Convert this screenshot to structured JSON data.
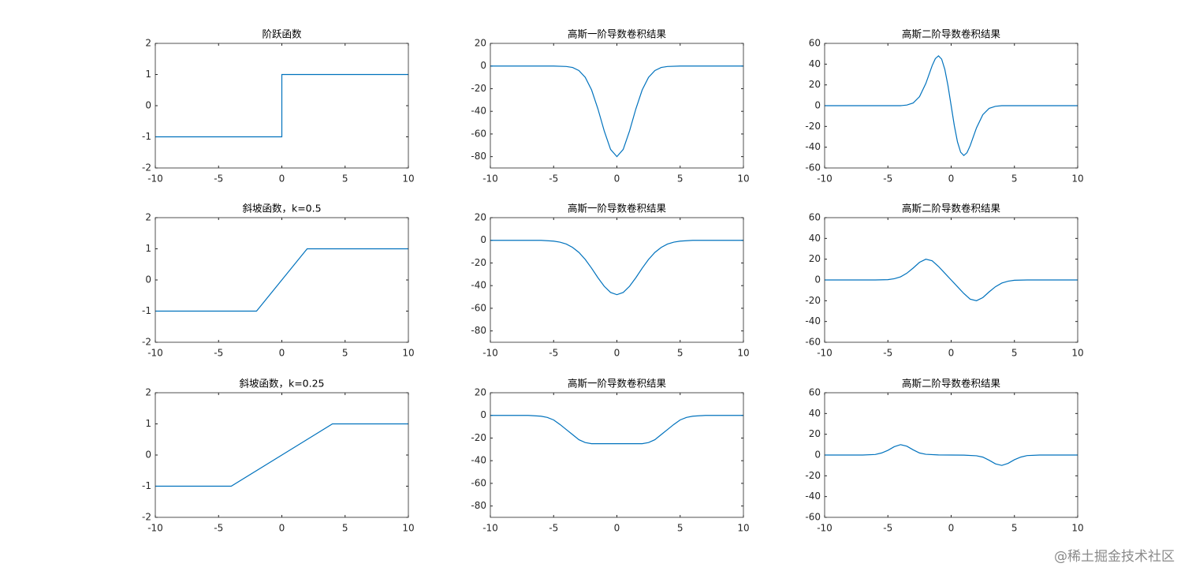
{
  "chart_data": [
    {
      "type": "line",
      "title": "阶跃函数",
      "x": [
        -10,
        0,
        0,
        10
      ],
      "values": [
        -1,
        -1,
        1,
        1
      ],
      "color": "#0072bd",
      "xlim": [
        -10,
        10
      ],
      "xticks": [
        -10,
        -5,
        0,
        5,
        10
      ],
      "ylim": [
        -2,
        2
      ],
      "yticks": [
        -2,
        -1,
        0,
        1,
        2
      ]
    },
    {
      "type": "line",
      "title": "高斯一阶导数卷积结果",
      "x": [
        -10,
        -5,
        -4,
        -3.5,
        -3,
        -2.5,
        -2,
        -1.5,
        -1,
        -0.5,
        0,
        0.5,
        1,
        1.5,
        2,
        2.5,
        3,
        3.5,
        4,
        5,
        10
      ],
      "values": [
        0,
        0,
        -0.4,
        -1.3,
        -4,
        -10,
        -21.1,
        -37.8,
        -57.3,
        -73.6,
        -80,
        -73.6,
        -57.3,
        -37.8,
        -21.1,
        -10,
        -4,
        -1.3,
        -0.4,
        0,
        0
      ],
      "color": "#0072bd",
      "xlim": [
        -10,
        10
      ],
      "xticks": [
        -10,
        -5,
        0,
        5,
        10
      ],
      "ylim": [
        -90,
        20
      ],
      "yticks": [
        -80,
        -60,
        -40,
        -20,
        0,
        20
      ]
    },
    {
      "type": "line",
      "title": "高斯二阶导数卷积结果",
      "x": [
        -10,
        -4,
        -3.5,
        -3,
        -2.5,
        -2,
        -1.5,
        -1.25,
        -1,
        -0.75,
        -0.5,
        -0.25,
        0,
        0.25,
        0.5,
        0.75,
        1,
        1.25,
        1.5,
        2,
        2.5,
        3,
        3.5,
        4,
        10
      ],
      "values": [
        0,
        0,
        0.6,
        2.6,
        8.7,
        21.4,
        38.6,
        45.3,
        48,
        44.8,
        34.9,
        19.2,
        0,
        -19.2,
        -34.9,
        -44.8,
        -48,
        -45.3,
        -38.6,
        -21.4,
        -8.7,
        -2.6,
        -0.6,
        0,
        0
      ],
      "color": "#0072bd",
      "xlim": [
        -10,
        10
      ],
      "xticks": [
        -10,
        -5,
        0,
        5,
        10
      ],
      "ylim": [
        -60,
        60
      ],
      "yticks": [
        -60,
        -40,
        -20,
        0,
        20,
        40,
        60
      ]
    },
    {
      "type": "line",
      "title": "斜坡函数，k=0.5",
      "x": [
        -10,
        -2,
        2,
        10
      ],
      "values": [
        -1,
        -1,
        1,
        1
      ],
      "color": "#0072bd",
      "xlim": [
        -10,
        10
      ],
      "xticks": [
        -10,
        -5,
        0,
        5,
        10
      ],
      "ylim": [
        -2,
        2
      ],
      "yticks": [
        -2,
        -1,
        0,
        1,
        2
      ]
    },
    {
      "type": "line",
      "title": "高斯一阶导数卷积结果",
      "x": [
        -10,
        -6,
        -5,
        -4.5,
        -4,
        -3.5,
        -3,
        -2.5,
        -2,
        -1.5,
        -1,
        -0.5,
        0,
        0.5,
        1,
        1.5,
        2,
        2.5,
        3,
        3.5,
        4,
        4.5,
        5,
        6,
        10
      ],
      "values": [
        0,
        0,
        -0.7,
        -1.6,
        -3.3,
        -6.3,
        -10.7,
        -16.9,
        -24.6,
        -33,
        -40.6,
        -46,
        -48,
        -46,
        -40.6,
        -33,
        -24.6,
        -16.9,
        -10.7,
        -6.3,
        -3.3,
        -1.6,
        -0.7,
        0,
        0
      ],
      "color": "#0072bd",
      "xlim": [
        -10,
        10
      ],
      "xticks": [
        -10,
        -5,
        0,
        5,
        10
      ],
      "ylim": [
        -90,
        20
      ],
      "yticks": [
        -80,
        -60,
        -40,
        -20,
        0,
        20
      ]
    },
    {
      "type": "line",
      "title": "高斯二阶导数卷积结果",
      "x": [
        -10,
        -6,
        -5,
        -4.5,
        -4,
        -3.5,
        -3,
        -2.5,
        -2,
        -1.5,
        -1,
        -0.5,
        0,
        0.5,
        1,
        1.5,
        2,
        2.5,
        3,
        3.5,
        4,
        4.5,
        5,
        6,
        10
      ],
      "values": [
        0,
        0,
        0.3,
        1.2,
        3,
        6.5,
        11.5,
        17,
        20,
        18.5,
        13,
        6.5,
        0,
        -6.5,
        -13,
        -18.5,
        -20,
        -17,
        -11.5,
        -6.5,
        -3,
        -1.2,
        -0.3,
        0,
        0
      ],
      "color": "#0072bd",
      "xlim": [
        -10,
        10
      ],
      "xticks": [
        -10,
        -5,
        0,
        5,
        10
      ],
      "ylim": [
        -60,
        60
      ],
      "yticks": [
        -60,
        -40,
        -20,
        0,
        20,
        40,
        60
      ]
    },
    {
      "type": "line",
      "title": "斜坡函数，k=0.25",
      "x": [
        -10,
        -4,
        4,
        10
      ],
      "values": [
        -1,
        -1,
        1,
        1
      ],
      "color": "#0072bd",
      "xlim": [
        -10,
        10
      ],
      "xticks": [
        -10,
        -5,
        0,
        5,
        10
      ],
      "ylim": [
        -2,
        2
      ],
      "yticks": [
        -2,
        -1,
        0,
        1,
        2
      ]
    },
    {
      "type": "line",
      "title": "高斯一阶导数卷积结果",
      "x": [
        -10,
        -7,
        -6,
        -5.5,
        -5,
        -4.5,
        -4,
        -3.5,
        -3,
        -2.5,
        -2,
        0,
        2,
        2.5,
        3,
        3.5,
        4,
        4.5,
        5,
        5.5,
        6,
        7,
        10
      ],
      "values": [
        0,
        0,
        -0.7,
        -1.8,
        -4,
        -8,
        -12.5,
        -17,
        -21.5,
        -24,
        -25,
        -25,
        -25,
        -24,
        -21.5,
        -17,
        -12.5,
        -8,
        -4,
        -1.8,
        -0.7,
        0,
        0
      ],
      "color": "#0072bd",
      "xlim": [
        -10,
        10
      ],
      "xticks": [
        -10,
        -5,
        0,
        5,
        10
      ],
      "ylim": [
        -90,
        20
      ],
      "yticks": [
        -80,
        -60,
        -40,
        -20,
        0,
        20
      ]
    },
    {
      "type": "line",
      "title": "高斯二阶导数卷积结果",
      "x": [
        -10,
        -7,
        -6,
        -5.5,
        -5,
        -4.5,
        -4,
        -3.5,
        -3,
        -2.5,
        -2,
        -1,
        0,
        1,
        2,
        2.5,
        3,
        3.5,
        4,
        4.5,
        5,
        5.5,
        6,
        7,
        10
      ],
      "values": [
        0,
        0,
        0.5,
        2,
        4.5,
        8,
        10,
        8.5,
        5,
        2,
        0.7,
        0.1,
        0,
        -0.1,
        -0.7,
        -2,
        -5,
        -8.5,
        -10,
        -8,
        -4.5,
        -2,
        -0.5,
        0,
        0
      ],
      "color": "#0072bd",
      "xlim": [
        -10,
        10
      ],
      "xticks": [
        -10,
        -5,
        0,
        5,
        10
      ],
      "ylim": [
        -60,
        60
      ],
      "yticks": [
        -60,
        -40,
        -20,
        0,
        20,
        40,
        60
      ]
    }
  ],
  "watermark": "@稀土掘金技术社区"
}
